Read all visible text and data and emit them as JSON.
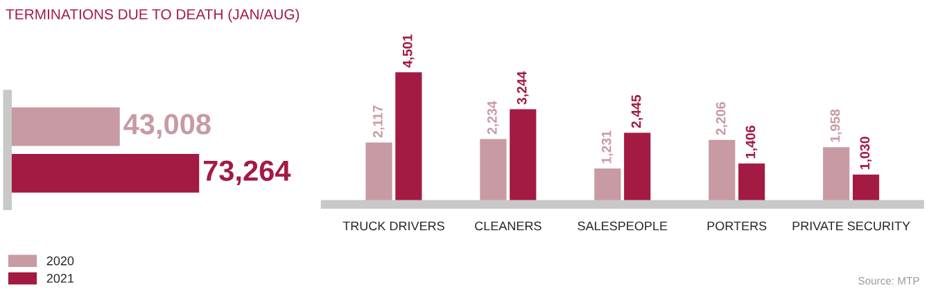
{
  "chart_data": [
    {
      "type": "bar",
      "title": "TERMINATIONS DUE TO DEATH (JAN/AUG)",
      "orientation": "horizontal",
      "categories": [
        null
      ],
      "legend": "bottom left",
      "series": [
        {
          "name": "2020",
          "color": "#c89aa3",
          "values": [
            43008
          ],
          "value_labels": [
            "43,008"
          ]
        },
        {
          "name": "2021",
          "color": "#a31a42",
          "values": [
            73264
          ],
          "value_labels": [
            "73,264"
          ]
        }
      ]
    },
    {
      "type": "bar",
      "categories": [
        "TRUCK DRIVERS",
        "CLEANERS",
        "SALESPEOPLE",
        "PORTERS",
        "PRIVATE SECURITY"
      ],
      "annotations": [
        "Source: MTP"
      ],
      "series": [
        {
          "name": "2020",
          "color": "#c89aa3",
          "values": [
            2117,
            2234,
            1231,
            2206,
            1958
          ],
          "value_labels": [
            "2,117",
            "2,234",
            "1,231",
            "2,206",
            "1,958"
          ]
        },
        {
          "name": "2021",
          "color": "#a31a42",
          "values": [
            4501,
            3244,
            2445,
            1406,
            1030
          ],
          "value_labels": [
            "4,501",
            "3,244",
            "2,445",
            "1,406",
            "1,030"
          ]
        }
      ]
    }
  ]
}
